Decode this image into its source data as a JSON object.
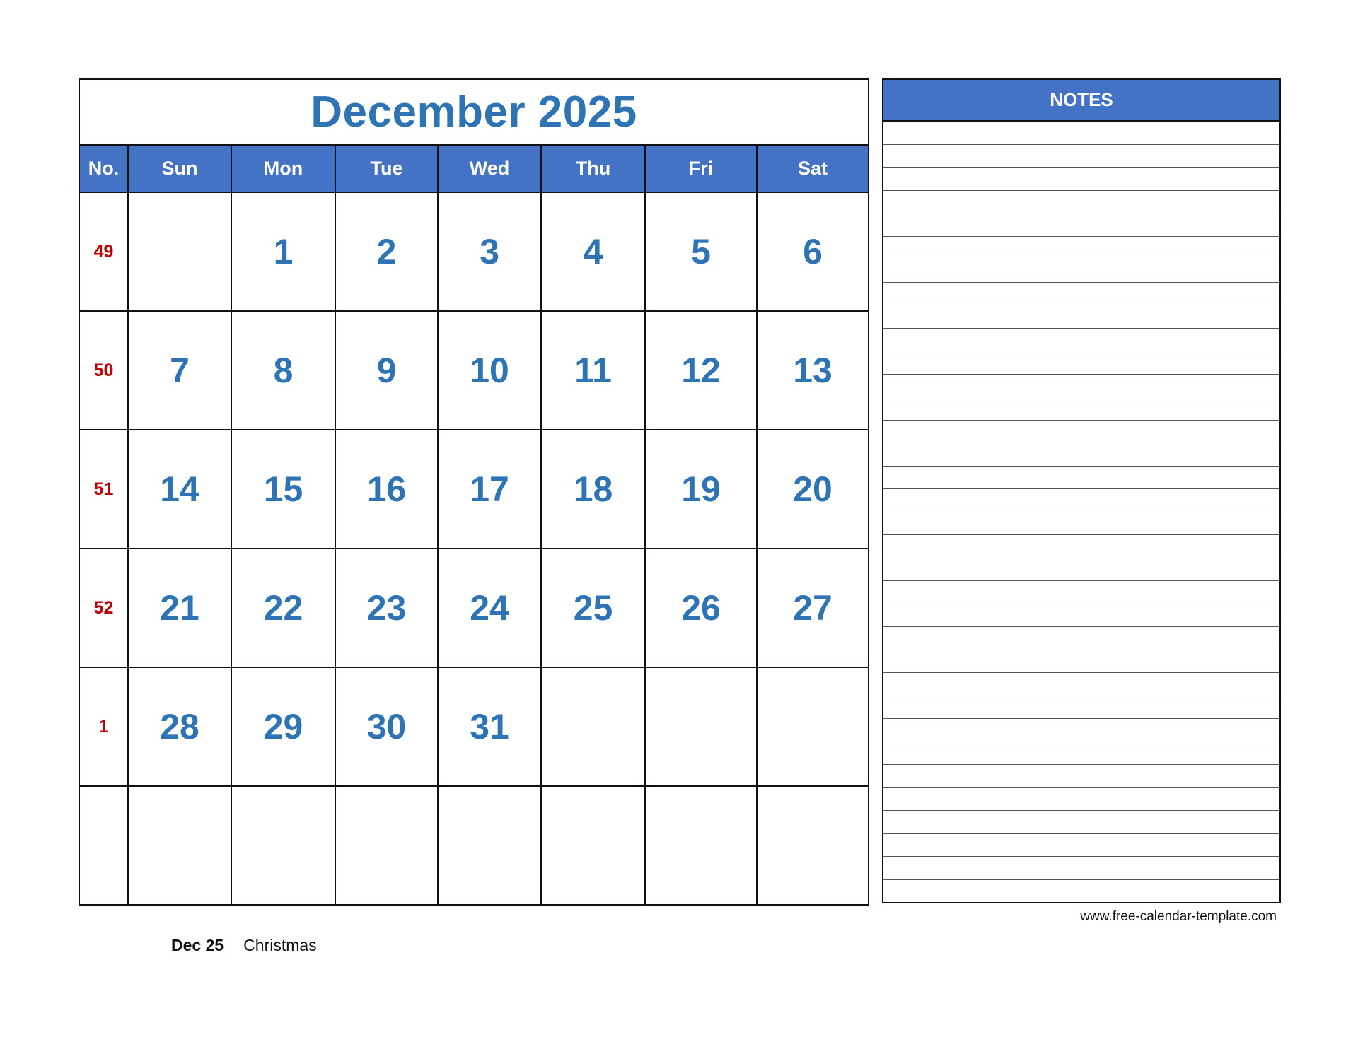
{
  "calendar": {
    "title": "December 2025",
    "headers": [
      "No.",
      "Sun",
      "Mon",
      "Tue",
      "Wed",
      "Thu",
      "Fri",
      "Sat"
    ],
    "weeks": [
      {
        "no": "49",
        "days": [
          "",
          "1",
          "2",
          "3",
          "4",
          "5",
          "6"
        ]
      },
      {
        "no": "50",
        "days": [
          "7",
          "8",
          "9",
          "10",
          "11",
          "12",
          "13"
        ]
      },
      {
        "no": "51",
        "days": [
          "14",
          "15",
          "16",
          "17",
          "18",
          "19",
          "20"
        ]
      },
      {
        "no": "52",
        "days": [
          "21",
          "22",
          "23",
          "24",
          "25",
          "26",
          "27"
        ]
      },
      {
        "no": "1",
        "days": [
          "28",
          "29",
          "30",
          "31",
          "",
          "",
          ""
        ]
      },
      {
        "no": "",
        "days": [
          "",
          "",
          "",
          "",
          "",
          "",
          ""
        ]
      }
    ]
  },
  "notes": {
    "title": "NOTES"
  },
  "holidays": [
    {
      "date": "Dec 25",
      "name": "Christmas"
    }
  ],
  "footer": {
    "url": "www.free-calendar-template.com"
  },
  "colors": {
    "header_bg": "#4472c4",
    "day_number": "#2e74b5",
    "week_number": "#c00000"
  }
}
